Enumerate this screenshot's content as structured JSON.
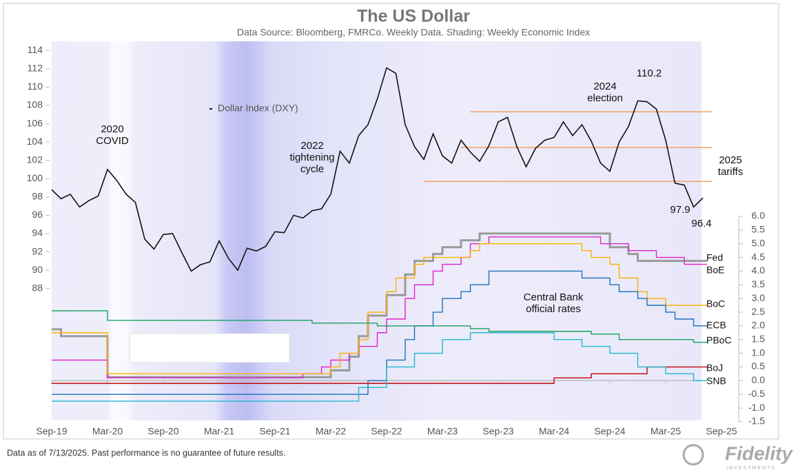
{
  "chart_data": {
    "type": "line",
    "title": "The US Dollar",
    "subtitle": "Data Source: Bloomberg, FMRCo. Weekly Data.  Shading: Weekly Economic Index",
    "x": [
      "2019-09",
      "2019-10",
      "2019-11",
      "2019-12",
      "2020-01",
      "2020-02",
      "2020-03",
      "2020-04",
      "2020-05",
      "2020-06",
      "2020-07",
      "2020-08",
      "2020-09",
      "2020-10",
      "2020-11",
      "2020-12",
      "2021-01",
      "2021-02",
      "2021-03",
      "2021-04",
      "2021-05",
      "2021-06",
      "2021-07",
      "2021-08",
      "2021-09",
      "2021-10",
      "2021-11",
      "2021-12",
      "2022-01",
      "2022-02",
      "2022-03",
      "2022-04",
      "2022-05",
      "2022-06",
      "2022-07",
      "2022-08",
      "2022-09",
      "2022-10",
      "2022-11",
      "2022-12",
      "2023-01",
      "2023-02",
      "2023-03",
      "2023-04",
      "2023-05",
      "2023-06",
      "2023-07",
      "2023-08",
      "2023-09",
      "2023-10",
      "2023-11",
      "2023-12",
      "2024-01",
      "2024-02",
      "2024-03",
      "2024-04",
      "2024-05",
      "2024-06",
      "2024-07",
      "2024-08",
      "2024-09",
      "2024-10",
      "2024-11",
      "2024-12",
      "2025-01",
      "2025-02",
      "2025-03",
      "2025-04",
      "2025-05",
      "2025-06",
      "2025-07"
    ],
    "xlim": [
      "2019-09",
      "2025-09"
    ],
    "xticks": [
      {
        "value": "2019-09",
        "label": "Sep-19"
      },
      {
        "value": "2020-03",
        "label": "Mar-20"
      },
      {
        "value": "2020-09",
        "label": "Sep-20"
      },
      {
        "value": "2021-03",
        "label": "Mar-21"
      },
      {
        "value": "2021-09",
        "label": "Sep-21"
      },
      {
        "value": "2022-03",
        "label": "Mar-22"
      },
      {
        "value": "2022-09",
        "label": "Sep-22"
      },
      {
        "value": "2023-03",
        "label": "Mar-23"
      },
      {
        "value": "2023-09",
        "label": "Sep-23"
      },
      {
        "value": "2024-03",
        "label": "Mar-24"
      },
      {
        "value": "2024-09",
        "label": "Sep-24"
      },
      {
        "value": "2025-03",
        "label": "Mar-25"
      },
      {
        "value": "2025-09",
        "label": "Sep-25"
      }
    ],
    "ylim": [
      73.6,
      115
    ],
    "yticks": [
      88,
      90,
      92,
      94,
      96,
      98,
      100,
      102,
      104,
      106,
      108,
      110,
      112,
      114
    ],
    "y2lim": [
      -1.5,
      6
    ],
    "y2ticks": [
      {
        "value": 6,
        "label": "6.0"
      },
      5.5,
      {
        "value": 5,
        "label": "5.0"
      },
      4.5,
      {
        "value": 4,
        "label": "4.0"
      },
      3.5,
      {
        "value": 3,
        "label": "3.0"
      },
      2.5,
      {
        "value": 2,
        "label": "2.0"
      },
      1.5,
      {
        "value": 1,
        "label": "1.0"
      },
      0.5,
      {
        "value": 0,
        "label": "0.0"
      },
      -0.5,
      {
        "value": -1,
        "label": "-1.0"
      },
      -1.5
    ],
    "series": [
      {
        "name": "Dollar Index (DXY)",
        "color": "#111111",
        "values": [
          98.8,
          97.8,
          98.3,
          96.9,
          97.6,
          98.1,
          101.0,
          99.8,
          98.3,
          97.4,
          93.4,
          92.3,
          93.9,
          94.0,
          91.9,
          89.9,
          90.6,
          90.9,
          93.2,
          91.3,
          90.0,
          92.4,
          92.1,
          92.6,
          94.2,
          94.1,
          96.0,
          95.7,
          96.5,
          96.7,
          98.3,
          103.0,
          101.7,
          104.7,
          105.9,
          108.7,
          112.1,
          111.5,
          105.9,
          103.5,
          102.1,
          104.9,
          102.5,
          101.7,
          104.2,
          102.9,
          101.9,
          103.6,
          106.2,
          106.7,
          103.5,
          101.3,
          103.3,
          104.2,
          104.5,
          106.2,
          104.7,
          105.9,
          104.1,
          101.7,
          100.8,
          104.0,
          105.7,
          108.5,
          108.4,
          107.6,
          104.2,
          99.5,
          99.3,
          96.9,
          97.9
        ]
      },
      {
        "name": "Fed",
        "color": "#9a9a9a",
        "axis": "y2",
        "values": [
          1.875,
          1.625,
          1.625,
          1.625,
          1.625,
          1.625,
          0.125,
          0.125,
          0.125,
          0.125,
          0.125,
          0.125,
          0.125,
          0.125,
          0.125,
          0.125,
          0.125,
          0.125,
          0.125,
          0.125,
          0.125,
          0.125,
          0.125,
          0.125,
          0.125,
          0.125,
          0.125,
          0.125,
          0.125,
          0.125,
          0.375,
          0.375,
          0.875,
          1.625,
          2.375,
          2.375,
          3.125,
          3.125,
          3.875,
          4.375,
          4.375,
          4.625,
          4.875,
          4.875,
          5.125,
          5.125,
          5.375,
          5.375,
          5.375,
          5.375,
          5.375,
          5.375,
          5.375,
          5.375,
          5.375,
          5.375,
          5.375,
          5.375,
          5.375,
          5.375,
          4.875,
          4.875,
          4.625,
          4.375,
          4.375,
          4.375,
          4.375,
          4.375,
          4.375,
          4.375,
          4.375
        ]
      },
      {
        "name": "BoJ",
        "color": "#c00000",
        "axis": "y2",
        "values": [
          -0.1,
          -0.1,
          -0.1,
          -0.1,
          -0.1,
          -0.1,
          -0.1,
          -0.1,
          -0.1,
          -0.1,
          -0.1,
          -0.1,
          -0.1,
          -0.1,
          -0.1,
          -0.1,
          -0.1,
          -0.1,
          -0.1,
          -0.1,
          -0.1,
          -0.1,
          -0.1,
          -0.1,
          -0.1,
          -0.1,
          -0.1,
          -0.1,
          -0.1,
          -0.1,
          -0.1,
          -0.1,
          -0.1,
          -0.1,
          -0.1,
          -0.1,
          -0.1,
          -0.1,
          -0.1,
          -0.1,
          -0.1,
          -0.1,
          -0.1,
          -0.1,
          -0.1,
          -0.1,
          -0.1,
          -0.1,
          -0.1,
          -0.1,
          -0.1,
          -0.1,
          -0.1,
          -0.1,
          0.1,
          0.1,
          0.1,
          0.1,
          0.25,
          0.25,
          0.25,
          0.25,
          0.25,
          0.25,
          0.5,
          0.5,
          0.5,
          0.5,
          0.5,
          0.5,
          0.5
        ]
      },
      {
        "name": "BoE",
        "color": "#e020c8",
        "axis": "y2",
        "values": [
          0.75,
          0.75,
          0.75,
          0.75,
          0.75,
          0.75,
          0.1,
          0.1,
          0.1,
          0.1,
          0.1,
          0.1,
          0.1,
          0.1,
          0.1,
          0.1,
          0.1,
          0.1,
          0.1,
          0.1,
          0.1,
          0.1,
          0.1,
          0.1,
          0.1,
          0.1,
          0.1,
          0.25,
          0.25,
          0.5,
          0.75,
          0.75,
          1.0,
          1.25,
          1.25,
          1.75,
          2.25,
          2.25,
          3.0,
          3.5,
          3.5,
          4.0,
          4.25,
          4.25,
          4.5,
          5.0,
          5.0,
          5.25,
          5.25,
          5.25,
          5.25,
          5.25,
          5.25,
          5.25,
          5.25,
          5.25,
          5.25,
          5.25,
          5.25,
          5.0,
          5.0,
          5.0,
          4.75,
          4.75,
          4.75,
          4.5,
          4.5,
          4.5,
          4.25,
          4.25,
          4.25
        ]
      },
      {
        "name": "BoC",
        "color": "#ffb000",
        "axis": "y2",
        "values": [
          1.75,
          1.75,
          1.75,
          1.75,
          1.75,
          1.75,
          0.25,
          0.25,
          0.25,
          0.25,
          0.25,
          0.25,
          0.25,
          0.25,
          0.25,
          0.25,
          0.25,
          0.25,
          0.25,
          0.25,
          0.25,
          0.25,
          0.25,
          0.25,
          0.25,
          0.25,
          0.25,
          0.25,
          0.25,
          0.25,
          0.5,
          1.0,
          1.0,
          1.5,
          2.5,
          2.5,
          3.25,
          3.75,
          3.75,
          4.25,
          4.5,
          4.5,
          4.5,
          4.5,
          4.5,
          4.75,
          5.0,
          5.0,
          5.0,
          5.0,
          5.0,
          5.0,
          5.0,
          5.0,
          5.0,
          5.0,
          5.0,
          4.75,
          4.5,
          4.5,
          4.25,
          3.75,
          3.75,
          3.25,
          3.0,
          3.0,
          2.75,
          2.75,
          2.75,
          2.75,
          2.75
        ]
      },
      {
        "name": "ECB",
        "color": "#1f6fb8",
        "axis": "y2",
        "values": [
          -0.5,
          -0.5,
          -0.5,
          -0.5,
          -0.5,
          -0.5,
          -0.5,
          -0.5,
          -0.5,
          -0.5,
          -0.5,
          -0.5,
          -0.5,
          -0.5,
          -0.5,
          -0.5,
          -0.5,
          -0.5,
          -0.5,
          -0.5,
          -0.5,
          -0.5,
          -0.5,
          -0.5,
          -0.5,
          -0.5,
          -0.5,
          -0.5,
          -0.5,
          -0.5,
          -0.5,
          -0.5,
          -0.5,
          -0.5,
          0.0,
          0.0,
          0.75,
          0.75,
          1.5,
          2.0,
          2.0,
          2.5,
          3.0,
          3.0,
          3.25,
          3.5,
          3.5,
          4.0,
          4.0,
          4.0,
          4.0,
          4.0,
          4.0,
          4.0,
          4.0,
          4.0,
          4.0,
          3.75,
          3.75,
          3.75,
          3.5,
          3.25,
          3.25,
          3.0,
          2.75,
          2.75,
          2.5,
          2.25,
          2.25,
          2.0,
          2.0
        ]
      },
      {
        "name": "SNB",
        "color": "#22b8d0",
        "axis": "y2",
        "values": [
          -0.75,
          -0.75,
          -0.75,
          -0.75,
          -0.75,
          -0.75,
          -0.75,
          -0.75,
          -0.75,
          -0.75,
          -0.75,
          -0.75,
          -0.75,
          -0.75,
          -0.75,
          -0.75,
          -0.75,
          -0.75,
          -0.75,
          -0.75,
          -0.75,
          -0.75,
          -0.75,
          -0.75,
          -0.75,
          -0.75,
          -0.75,
          -0.75,
          -0.75,
          -0.75,
          -0.75,
          -0.75,
          -0.75,
          -0.25,
          -0.25,
          -0.25,
          0.5,
          0.5,
          0.5,
          1.0,
          1.0,
          1.0,
          1.5,
          1.5,
          1.5,
          1.75,
          1.75,
          1.75,
          1.75,
          1.75,
          1.75,
          1.75,
          1.75,
          1.75,
          1.5,
          1.5,
          1.5,
          1.25,
          1.25,
          1.25,
          1.0,
          1.0,
          1.0,
          0.5,
          0.5,
          0.5,
          0.25,
          0.25,
          0.25,
          0.0,
          0.0
        ]
      },
      {
        "name": "PBoC",
        "color": "#1aa060",
        "axis": "y2",
        "in_legend": false,
        "values": [
          2.55,
          2.55,
          2.55,
          2.55,
          2.55,
          2.55,
          2.2,
          2.2,
          2.2,
          2.2,
          2.2,
          2.2,
          2.2,
          2.2,
          2.2,
          2.2,
          2.2,
          2.2,
          2.2,
          2.2,
          2.2,
          2.2,
          2.2,
          2.2,
          2.2,
          2.2,
          2.2,
          2.2,
          2.1,
          2.1,
          2.1,
          2.1,
          2.1,
          2.1,
          2.1,
          2.0,
          2.0,
          2.0,
          2.0,
          2.0,
          2.0,
          2.0,
          2.0,
          2.0,
          2.0,
          1.9,
          1.9,
          1.8,
          1.8,
          1.8,
          1.8,
          1.8,
          1.8,
          1.8,
          1.8,
          1.8,
          1.8,
          1.8,
          1.7,
          1.7,
          1.7,
          1.5,
          1.5,
          1.5,
          1.5,
          1.5,
          1.5,
          1.5,
          1.5,
          1.4,
          1.4
        ]
      }
    ],
    "reference_lines": [
      {
        "value": 107.3,
        "start": "2023-06",
        "color": "#f0a060"
      },
      {
        "value": 103.4,
        "start": "2023-05",
        "color": "#f0a060"
      },
      {
        "value": 99.7,
        "start": "2023-01",
        "color": "#f0a060"
      }
    ],
    "annotations": [
      {
        "text": [
          "2020",
          "COVID"
        ]
      },
      {
        "text": [
          "2022",
          "tightening",
          "cycle"
        ]
      },
      {
        "text": [
          "2024",
          "election"
        ]
      },
      {
        "text": [
          "110.2"
        ]
      },
      {
        "text": [
          "2025",
          "tariffs"
        ]
      },
      {
        "text": [
          "97.9"
        ]
      },
      {
        "text": [
          "96.4"
        ]
      },
      {
        "text": [
          "Central Bank",
          "official rates"
        ]
      }
    ]
  },
  "footer": {
    "note": "Data as of 7/13/2025. Past performance is no guarantee of future results.",
    "logo": "Fidelity",
    "logo_sub": "INVESTMENTS"
  }
}
